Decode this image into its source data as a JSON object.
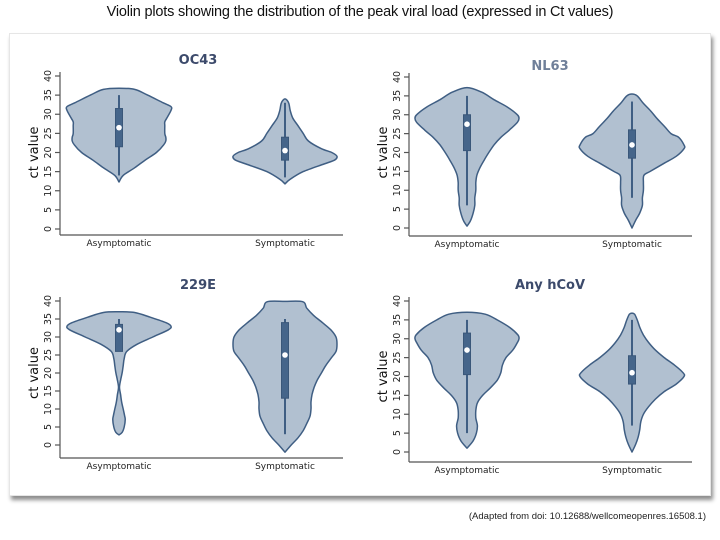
{
  "page": {
    "title": "Violin plots showing the distribution of the peak viral load (expressed in Ct values)",
    "citation": "(Adapted from doi: 10.12688/wellcomeopenres.16508.1)"
  },
  "chart_data": [
    {
      "type": "violin",
      "title": "OC43",
      "xlabel": "",
      "ylabel": "ct value",
      "ylim": [
        0,
        40
      ],
      "yticks": [
        0,
        5,
        10,
        15,
        20,
        25,
        30,
        35,
        40
      ],
      "categories": [
        "Asymptomatic",
        "Symptomatic"
      ],
      "groups": [
        {
          "name": "Asymptomatic",
          "median": 26.5,
          "q1": 21.5,
          "q3": 31.5,
          "whisker_low": 14,
          "whisker_high": 35,
          "density_profile": [
            [
              12.3,
              0
            ],
            [
              14,
              0.08
            ],
            [
              16,
              0.3
            ],
            [
              18,
              0.5
            ],
            [
              20,
              0.72
            ],
            [
              22,
              0.86
            ],
            [
              23,
              0.9
            ],
            [
              24,
              0.9
            ],
            [
              25,
              0.88
            ],
            [
              27,
              0.88
            ],
            [
              28,
              0.88
            ],
            [
              29,
              0.92
            ],
            [
              31,
              1.0
            ],
            [
              32,
              1.0
            ],
            [
              33,
              0.85
            ],
            [
              35,
              0.55
            ],
            [
              36.5,
              0.3
            ],
            [
              36.8,
              0
            ]
          ]
        },
        {
          "name": "Symptomatic",
          "median": 20.5,
          "q1": 18,
          "q3": 24,
          "whisker_low": 13.5,
          "whisker_high": 33,
          "density_profile": [
            [
              11.8,
              0
            ],
            [
              13,
              0.1
            ],
            [
              15,
              0.35
            ],
            [
              17,
              0.75
            ],
            [
              18,
              0.95
            ],
            [
              19,
              1.0
            ],
            [
              20,
              0.9
            ],
            [
              21,
              0.7
            ],
            [
              23,
              0.45
            ],
            [
              25,
              0.35
            ],
            [
              27,
              0.25
            ],
            [
              29,
              0.15
            ],
            [
              31,
              0.1
            ],
            [
              33,
              0.07
            ],
            [
              34,
              0
            ]
          ]
        }
      ]
    },
    {
      "type": "violin",
      "title": "NL63",
      "xlabel": "",
      "ylabel": "ct value",
      "ylim": [
        0,
        40
      ],
      "yticks": [
        0,
        5,
        10,
        15,
        20,
        25,
        30,
        35,
        40
      ],
      "categories": [
        "Asymptomatic",
        "Symptomatic"
      ],
      "groups": [
        {
          "name": "Asymptomatic",
          "median": 27.5,
          "q1": 20.5,
          "q3": 30,
          "whisker_low": 6,
          "whisker_high": 35,
          "density_profile": [
            [
              0.5,
              0
            ],
            [
              2,
              0.07
            ],
            [
              4,
              0.12
            ],
            [
              6,
              0.15
            ],
            [
              8,
              0.15
            ],
            [
              10,
              0.17
            ],
            [
              12,
              0.17
            ],
            [
              14,
              0.19
            ],
            [
              16,
              0.25
            ],
            [
              18,
              0.33
            ],
            [
              20,
              0.42
            ],
            [
              22,
              0.52
            ],
            [
              24,
              0.65
            ],
            [
              26,
              0.82
            ],
            [
              28,
              0.97
            ],
            [
              29,
              1.0
            ],
            [
              30,
              0.97
            ],
            [
              32,
              0.78
            ],
            [
              34,
              0.52
            ],
            [
              36,
              0.28
            ],
            [
              37.2,
              0
            ]
          ]
        },
        {
          "name": "Symptomatic",
          "median": 22,
          "q1": 18.5,
          "q3": 26,
          "whisker_low": 8,
          "whisker_high": 33.5,
          "density_profile": [
            [
              0,
              0
            ],
            [
              2,
              0.07
            ],
            [
              4,
              0.15
            ],
            [
              6,
              0.2
            ],
            [
              8,
              0.2
            ],
            [
              10,
              0.22
            ],
            [
              12,
              0.22
            ],
            [
              14,
              0.23
            ],
            [
              15,
              0.35
            ],
            [
              17,
              0.6
            ],
            [
              19,
              0.85
            ],
            [
              21,
              1.0
            ],
            [
              22,
              1.0
            ],
            [
              24,
              0.9
            ],
            [
              25,
              0.75
            ],
            [
              27,
              0.62
            ],
            [
              29,
              0.48
            ],
            [
              31,
              0.36
            ],
            [
              33,
              0.22
            ],
            [
              35,
              0.1
            ],
            [
              35.5,
              0
            ]
          ]
        }
      ]
    },
    {
      "type": "violin",
      "title": "229E",
      "xlabel": "",
      "ylabel": "ct value",
      "ylim": [
        0,
        40
      ],
      "yticks": [
        0,
        5,
        10,
        15,
        20,
        25,
        30,
        35,
        40
      ],
      "categories": [
        "Asymptomatic",
        "Symptomatic"
      ],
      "groups": [
        {
          "name": "Asymptomatic",
          "median": 32,
          "q1": 26,
          "q3": 33.5,
          "whisker_low": 26,
          "whisker_high": 35,
          "density_profile": [
            [
              2.8,
              0
            ],
            [
              3.5,
              0.06
            ],
            [
              5,
              0.1
            ],
            [
              7,
              0.12
            ],
            [
              8,
              0.11
            ],
            [
              10,
              0.08
            ],
            [
              12,
              0.05
            ],
            [
              14,
              0.03
            ],
            [
              16,
              0.01
            ],
            [
              18,
              0.03
            ],
            [
              20,
              0.06
            ],
            [
              22,
              0.08
            ],
            [
              24,
              0.1
            ],
            [
              26,
              0.15
            ],
            [
              28,
              0.35
            ],
            [
              30,
              0.65
            ],
            [
              32,
              0.95
            ],
            [
              33,
              1.0
            ],
            [
              34,
              0.9
            ],
            [
              35.5,
              0.6
            ],
            [
              36.8,
              0.3
            ],
            [
              37,
              0
            ]
          ]
        },
        {
          "name": "Symptomatic",
          "median": 25,
          "q1": 13,
          "q3": 34,
          "whisker_low": 3,
          "whisker_high": 35,
          "density_profile": [
            [
              -2,
              0
            ],
            [
              0,
              0.12
            ],
            [
              2,
              0.25
            ],
            [
              4,
              0.35
            ],
            [
              6,
              0.42
            ],
            [
              8,
              0.48
            ],
            [
              10,
              0.5
            ],
            [
              12,
              0.5
            ],
            [
              14,
              0.52
            ],
            [
              16,
              0.56
            ],
            [
              18,
              0.62
            ],
            [
              20,
              0.7
            ],
            [
              22,
              0.78
            ],
            [
              24,
              0.88
            ],
            [
              26,
              0.98
            ],
            [
              28,
              1.0
            ],
            [
              30,
              0.98
            ],
            [
              32,
              0.88
            ],
            [
              34,
              0.72
            ],
            [
              36,
              0.55
            ],
            [
              38,
              0.42
            ],
            [
              39.8,
              0.34
            ],
            [
              39.9,
              0
            ]
          ]
        }
      ]
    },
    {
      "type": "violin",
      "title": "Any hCoV",
      "xlabel": "",
      "ylabel": "ct value",
      "ylim": [
        0,
        40
      ],
      "yticks": [
        0,
        5,
        10,
        15,
        20,
        25,
        30,
        35,
        40
      ],
      "categories": [
        "Asymptomatic",
        "Symptomatic"
      ],
      "groups": [
        {
          "name": "Asymptomatic",
          "median": 27,
          "q1": 20.5,
          "q3": 31.5,
          "whisker_low": 5,
          "whisker_high": 35,
          "density_profile": [
            [
              1,
              0
            ],
            [
              3,
              0.12
            ],
            [
              5,
              0.18
            ],
            [
              7,
              0.2
            ],
            [
              9,
              0.17
            ],
            [
              11,
              0.17
            ],
            [
              13,
              0.2
            ],
            [
              15,
              0.3
            ],
            [
              17,
              0.45
            ],
            [
              19,
              0.58
            ],
            [
              21,
              0.65
            ],
            [
              23,
              0.68
            ],
            [
              25,
              0.75
            ],
            [
              27,
              0.88
            ],
            [
              29,
              0.97
            ],
            [
              30,
              1.0
            ],
            [
              31,
              0.98
            ],
            [
              33,
              0.82
            ],
            [
              35,
              0.58
            ],
            [
              36.5,
              0.35
            ],
            [
              37,
              0
            ]
          ]
        },
        {
          "name": "Symptomatic",
          "median": 21,
          "q1": 18,
          "q3": 25.5,
          "whisker_low": 7,
          "whisker_high": 35,
          "density_profile": [
            [
              0,
              0
            ],
            [
              2,
              0.07
            ],
            [
              4,
              0.12
            ],
            [
              6,
              0.15
            ],
            [
              8,
              0.17
            ],
            [
              10,
              0.22
            ],
            [
              12,
              0.32
            ],
            [
              14,
              0.45
            ],
            [
              16,
              0.62
            ],
            [
              18,
              0.85
            ],
            [
              20,
              1.0
            ],
            [
              21,
              0.98
            ],
            [
              23,
              0.82
            ],
            [
              25,
              0.62
            ],
            [
              27,
              0.45
            ],
            [
              29,
              0.32
            ],
            [
              31,
              0.22
            ],
            [
              33,
              0.15
            ],
            [
              35,
              0.1
            ],
            [
              36.5,
              0.05
            ],
            [
              36.8,
              0
            ]
          ]
        }
      ]
    }
  ]
}
